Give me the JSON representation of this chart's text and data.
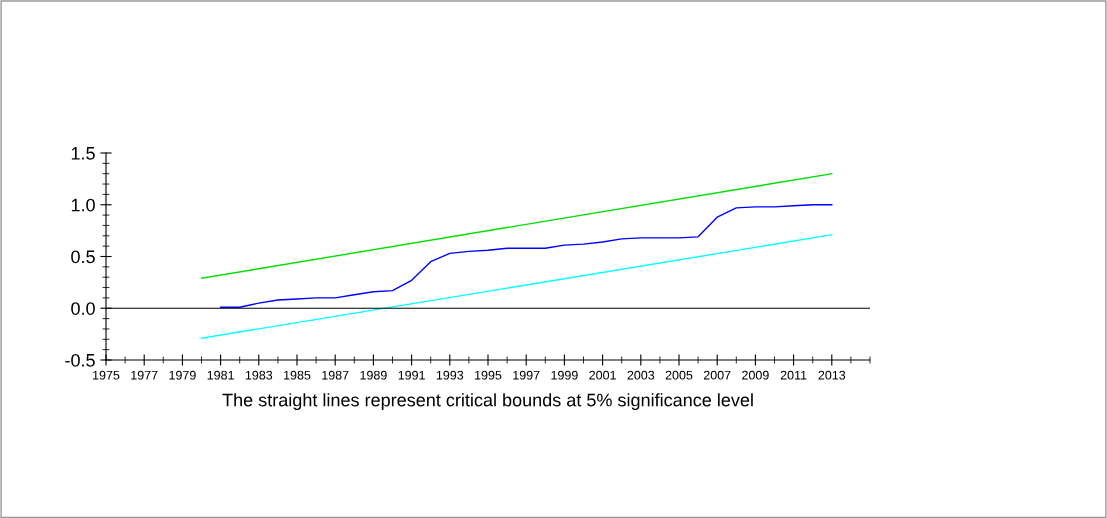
{
  "chart_data": {
    "type": "line",
    "xlabel": "The straight lines represent critical bounds at 5% significance level",
    "series": [
      {
        "color": "#0000ff",
        "x": [
          1981,
          1982,
          1983,
          1984,
          1985,
          1986,
          1987,
          1988,
          1989,
          1990,
          1991,
          1992,
          1993,
          1994,
          1995,
          1996,
          1997,
          1998,
          1999,
          2000,
          2001,
          2002,
          2003,
          2004,
          2005,
          2006,
          2007,
          2008,
          2009,
          2010,
          2011,
          2012,
          2013
        ],
        "values": [
          0.01,
          0.01,
          0.05,
          0.08,
          0.09,
          0.1,
          0.1,
          0.13,
          0.16,
          0.17,
          0.27,
          0.45,
          0.53,
          0.55,
          0.56,
          0.58,
          0.58,
          0.58,
          0.61,
          0.62,
          0.64,
          0.67,
          0.68,
          0.68,
          0.68,
          0.69,
          0.88,
          0.97,
          0.98,
          0.98,
          0.99,
          1.0,
          1.0
        ]
      },
      {
        "color": "#00dd00",
        "x": [
          1980,
          2013
        ],
        "values": [
          0.29,
          1.3
        ]
      },
      {
        "color": "#00ffff",
        "x": [
          1980,
          2013
        ],
        "values": [
          -0.29,
          0.71
        ]
      }
    ],
    "ref_lines": [
      {
        "axis": "y",
        "value": 0,
        "color": "#000000"
      }
    ],
    "xlim": [
      1975,
      2015
    ],
    "xticks": [
      1975,
      1977,
      1979,
      1981,
      1983,
      1985,
      1987,
      1989,
      1991,
      1993,
      1995,
      1997,
      1999,
      2001,
      2003,
      2005,
      2007,
      2009,
      2011,
      2013
    ],
    "ylim": [
      -0.5,
      1.5
    ],
    "yticks": [
      {
        "value": -0.5,
        "label": "-0.5"
      },
      {
        "value": 0,
        "label": "0.0"
      },
      {
        "value": 0.5,
        "label": "0.5"
      },
      {
        "value": 1.0,
        "label": "1.0"
      },
      {
        "value": 1.5,
        "label": "1.5"
      }
    ],
    "grid": false,
    "legend": false
  }
}
